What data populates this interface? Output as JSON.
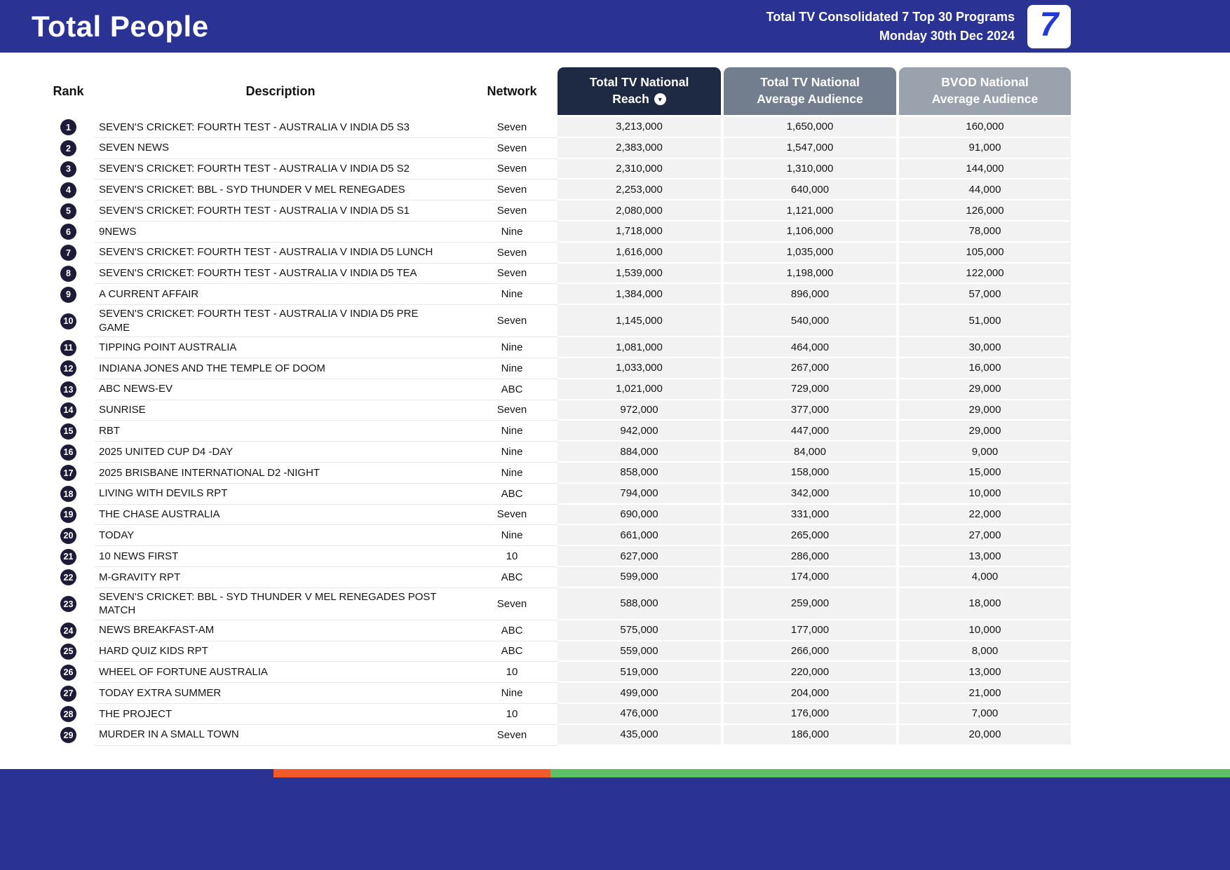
{
  "header": {
    "title": "Total People",
    "report_line1": "Total TV Consolidated 7 Top 30 Programs",
    "report_line2": "Monday 30th Dec 2024",
    "logo_text": "7"
  },
  "table": {
    "columns": {
      "rank": "Rank",
      "description": "Description",
      "network": "Network",
      "reach_line1": "Total TV National",
      "reach_line2": "Reach",
      "avg_line1": "Total TV National",
      "avg_line2": "Average Audience",
      "bvod_line1": "BVOD National",
      "bvod_line2": "Average Audience"
    },
    "sort": {
      "column": "Total TV National Reach",
      "direction": "descending",
      "icon": "▼"
    },
    "rows": [
      {
        "rank": "1",
        "description": "SEVEN'S CRICKET: FOURTH TEST - AUSTRALIA V INDIA D5 S3",
        "network": "Seven",
        "reach": "3,213,000",
        "avg": "1,650,000",
        "bvod": "160,000"
      },
      {
        "rank": "2",
        "description": "SEVEN NEWS",
        "network": "Seven",
        "reach": "2,383,000",
        "avg": "1,547,000",
        "bvod": "91,000"
      },
      {
        "rank": "3",
        "description": "SEVEN'S CRICKET: FOURTH TEST - AUSTRALIA V INDIA D5 S2",
        "network": "Seven",
        "reach": "2,310,000",
        "avg": "1,310,000",
        "bvod": "144,000"
      },
      {
        "rank": "4",
        "description": "SEVEN'S CRICKET: BBL - SYD THUNDER V MEL RENEGADES",
        "network": "Seven",
        "reach": "2,253,000",
        "avg": "640,000",
        "bvod": "44,000"
      },
      {
        "rank": "5",
        "description": "SEVEN'S CRICKET: FOURTH TEST - AUSTRALIA V INDIA D5 S1",
        "network": "Seven",
        "reach": "2,080,000",
        "avg": "1,121,000",
        "bvod": "126,000"
      },
      {
        "rank": "6",
        "description": "9NEWS",
        "network": "Nine",
        "reach": "1,718,000",
        "avg": "1,106,000",
        "bvod": "78,000"
      },
      {
        "rank": "7",
        "description": "SEVEN'S CRICKET: FOURTH TEST - AUSTRALIA V INDIA D5 LUNCH",
        "network": "Seven",
        "reach": "1,616,000",
        "avg": "1,035,000",
        "bvod": "105,000"
      },
      {
        "rank": "8",
        "description": "SEVEN'S CRICKET: FOURTH TEST - AUSTRALIA V INDIA D5 TEA",
        "network": "Seven",
        "reach": "1,539,000",
        "avg": "1,198,000",
        "bvod": "122,000"
      },
      {
        "rank": "9",
        "description": "A CURRENT AFFAIR",
        "network": "Nine",
        "reach": "1,384,000",
        "avg": "896,000",
        "bvod": "57,000"
      },
      {
        "rank": "10",
        "description": "SEVEN'S CRICKET: FOURTH TEST - AUSTRALIA V INDIA D5 PRE GAME",
        "network": "Seven",
        "reach": "1,145,000",
        "avg": "540,000",
        "bvod": "51,000"
      },
      {
        "rank": "11",
        "description": "TIPPING POINT AUSTRALIA",
        "network": "Nine",
        "reach": "1,081,000",
        "avg": "464,000",
        "bvod": "30,000"
      },
      {
        "rank": "12",
        "description": "INDIANA JONES AND THE TEMPLE OF DOOM",
        "network": "Nine",
        "reach": "1,033,000",
        "avg": "267,000",
        "bvod": "16,000"
      },
      {
        "rank": "13",
        "description": "ABC NEWS-EV",
        "network": "ABC",
        "reach": "1,021,000",
        "avg": "729,000",
        "bvod": "29,000"
      },
      {
        "rank": "14",
        "description": "SUNRISE",
        "network": "Seven",
        "reach": "972,000",
        "avg": "377,000",
        "bvod": "29,000"
      },
      {
        "rank": "15",
        "description": "RBT",
        "network": "Nine",
        "reach": "942,000",
        "avg": "447,000",
        "bvod": "29,000"
      },
      {
        "rank": "16",
        "description": "2025 UNITED CUP D4 -DAY",
        "network": "Nine",
        "reach": "884,000",
        "avg": "84,000",
        "bvod": "9,000"
      },
      {
        "rank": "17",
        "description": "2025 BRISBANE INTERNATIONAL D2 -NIGHT",
        "network": "Nine",
        "reach": "858,000",
        "avg": "158,000",
        "bvod": "15,000"
      },
      {
        "rank": "18",
        "description": "LIVING WITH DEVILS RPT",
        "network": "ABC",
        "reach": "794,000",
        "avg": "342,000",
        "bvod": "10,000"
      },
      {
        "rank": "19",
        "description": "THE CHASE AUSTRALIA",
        "network": "Seven",
        "reach": "690,000",
        "avg": "331,000",
        "bvod": "22,000"
      },
      {
        "rank": "20",
        "description": "TODAY",
        "network": "Nine",
        "reach": "661,000",
        "avg": "265,000",
        "bvod": "27,000"
      },
      {
        "rank": "21",
        "description": "10 NEWS FIRST",
        "network": "10",
        "reach": "627,000",
        "avg": "286,000",
        "bvod": "13,000"
      },
      {
        "rank": "22",
        "description": "M-GRAVITY RPT",
        "network": "ABC",
        "reach": "599,000",
        "avg": "174,000",
        "bvod": "4,000"
      },
      {
        "rank": "23",
        "description": "SEVEN'S CRICKET: BBL - SYD THUNDER V MEL RENEGADES POST MATCH",
        "network": "Seven",
        "reach": "588,000",
        "avg": "259,000",
        "bvod": "18,000"
      },
      {
        "rank": "24",
        "description": "NEWS BREAKFAST-AM",
        "network": "ABC",
        "reach": "575,000",
        "avg": "177,000",
        "bvod": "10,000"
      },
      {
        "rank": "25",
        "description": "HARD QUIZ KIDS RPT",
        "network": "ABC",
        "reach": "559,000",
        "avg": "266,000",
        "bvod": "8,000"
      },
      {
        "rank": "26",
        "description": "WHEEL OF FORTUNE AUSTRALIA",
        "network": "10",
        "reach": "519,000",
        "avg": "220,000",
        "bvod": "13,000"
      },
      {
        "rank": "27",
        "description": "TODAY EXTRA SUMMER",
        "network": "Nine",
        "reach": "499,000",
        "avg": "204,000",
        "bvod": "21,000"
      },
      {
        "rank": "28",
        "description": "THE PROJECT",
        "network": "10",
        "reach": "476,000",
        "avg": "176,000",
        "bvod": "7,000"
      },
      {
        "rank": "29",
        "description": "MURDER IN A SMALL TOWN",
        "network": "Seven",
        "reach": "435,000",
        "avg": "186,000",
        "bvod": "20,000"
      }
    ]
  },
  "colors": {
    "brand_navy": "#2a3393",
    "reach_header": "#1e2a44",
    "avg_header": "#727e8e",
    "bvod_header": "#9aa2ad",
    "strip_orange": "#f15a2b",
    "strip_green": "#5ec065",
    "value_cell_bg": "#f2f2f3"
  }
}
